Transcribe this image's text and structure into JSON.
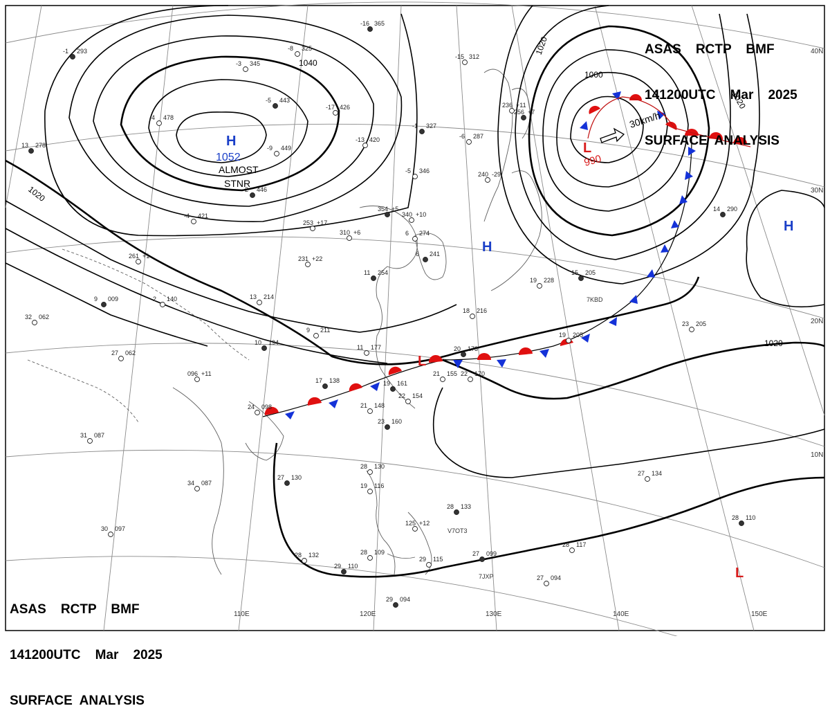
{
  "header": {
    "line1": "ASAS    RCTP    BMF",
    "line2": "141200UTC    Mar    2025",
    "line3": "SURFACE  ANALYSIS"
  },
  "pressure_systems": {
    "high_nw": {
      "letter": "H",
      "value": "1052",
      "note1": "ALMOST",
      "note2": "STNR",
      "color": "#1a3fc8"
    },
    "high_center": {
      "letter": "H",
      "color": "#1a3fc8"
    },
    "high_east": {
      "letter": "H",
      "color": "#1a3fc8"
    },
    "low_ne": {
      "letter": "L",
      "value": "990",
      "motion": "30km/h",
      "color": "#d81b1b"
    },
    "low_scs": {
      "letter": "L",
      "color": "#d81b1b"
    },
    "low_se": {
      "letter": "L",
      "color": "#d81b1b"
    }
  },
  "isobar_labels": {
    "a": "1020",
    "b": "1040",
    "c": "1020",
    "d": "1000",
    "e": "1020",
    "f": "1020"
  },
  "longitudes": [
    "110E",
    "120E",
    "130E",
    "140E",
    "150E"
  ],
  "latitudes": [
    "40N",
    "30N",
    "20N",
    "10N"
  ],
  "ship_ids": [
    "7KBD",
    "V7OT3",
    "7JXP"
  ],
  "stations": [
    {
      "t": "-1",
      "p": "293"
    },
    {
      "t": "-3",
      "p": "345"
    },
    {
      "t": "-8",
      "p": "325"
    },
    {
      "t": "-16",
      "p": "365"
    },
    {
      "t": "-15",
      "p": "312"
    },
    {
      "t": "-4",
      "p": "478"
    },
    {
      "t": "-5",
      "p": "443"
    },
    {
      "t": "-17",
      "p": "426"
    },
    {
      "t": "-13",
      "p": "420"
    },
    {
      "t": "-1",
      "p": "327"
    },
    {
      "t": "-6",
      "p": "287"
    },
    {
      "t": "-9",
      "p": "449"
    },
    {
      "t": "-2",
      "p": "446"
    },
    {
      "t": "-4",
      "p": "421"
    },
    {
      "t": "-5",
      "p": "346"
    },
    {
      "t": "13",
      "p": "278"
    },
    {
      "t": "253",
      "p": "+17"
    },
    {
      "t": "310",
      "p": "+6"
    },
    {
      "t": "354",
      "p": "+5"
    },
    {
      "t": "340",
      "p": "+10"
    },
    {
      "t": "6",
      "p": "274"
    },
    {
      "t": "6",
      "p": "241"
    },
    {
      "t": "261",
      "p": "+1"
    },
    {
      "t": "231",
      "p": "+22"
    },
    {
      "t": "11",
      "p": "254"
    },
    {
      "t": "13",
      "p": "214"
    },
    {
      "t": "2",
      "p": "140"
    },
    {
      "t": "9",
      "p": "009"
    },
    {
      "t": "32",
      "p": "062"
    },
    {
      "t": "9",
      "p": "211"
    },
    {
      "t": "10",
      "p": "194"
    },
    {
      "t": "11",
      "p": "177"
    },
    {
      "t": "27",
      "p": "062"
    },
    {
      "t": "17",
      "p": "138"
    },
    {
      "t": "096",
      "p": "+11"
    },
    {
      "t": "24",
      "p": "098"
    },
    {
      "t": "19",
      "p": "161"
    },
    {
      "t": "22",
      "p": "154"
    },
    {
      "t": "21",
      "p": "148"
    },
    {
      "t": "23",
      "p": "160"
    },
    {
      "t": "21",
      "p": "155"
    },
    {
      "t": "22",
      "p": "170"
    },
    {
      "t": "20",
      "p": "173"
    },
    {
      "t": "18",
      "p": "216"
    },
    {
      "t": "19",
      "p": "228"
    },
    {
      "t": "15",
      "p": "205"
    },
    {
      "t": "19",
      "p": "205"
    },
    {
      "t": "23",
      "p": "205"
    },
    {
      "t": "14",
      "p": "290"
    },
    {
      "t": "31",
      "p": "087"
    },
    {
      "t": "34",
      "p": "087"
    },
    {
      "t": "27",
      "p": "130"
    },
    {
      "t": "28",
      "p": "130"
    },
    {
      "t": "19",
      "p": "116"
    },
    {
      "t": "28",
      "p": "133"
    },
    {
      "t": "125",
      "p": "+12"
    },
    {
      "t": "27",
      "p": "134"
    },
    {
      "t": "28",
      "p": "110"
    },
    {
      "t": "30",
      "p": "097"
    },
    {
      "t": "28",
      "p": "132"
    },
    {
      "t": "29",
      "p": "110"
    },
    {
      "t": "28",
      "p": "109"
    },
    {
      "t": "29",
      "p": "115"
    },
    {
      "t": "27",
      "p": "099"
    },
    {
      "t": "28",
      "p": "117"
    },
    {
      "t": "27",
      "p": "094"
    },
    {
      "t": "29",
      "p": "094"
    },
    {
      "t": "240",
      "p": "-29"
    },
    {
      "t": "236",
      "p": "+11"
    },
    {
      "t": "256",
      "p": "+7"
    }
  ],
  "colors": {
    "warm_front": "#e01010",
    "cold_front": "#1432d8",
    "isobar": "#000000",
    "grid": "#888888",
    "coast": "#555555"
  }
}
